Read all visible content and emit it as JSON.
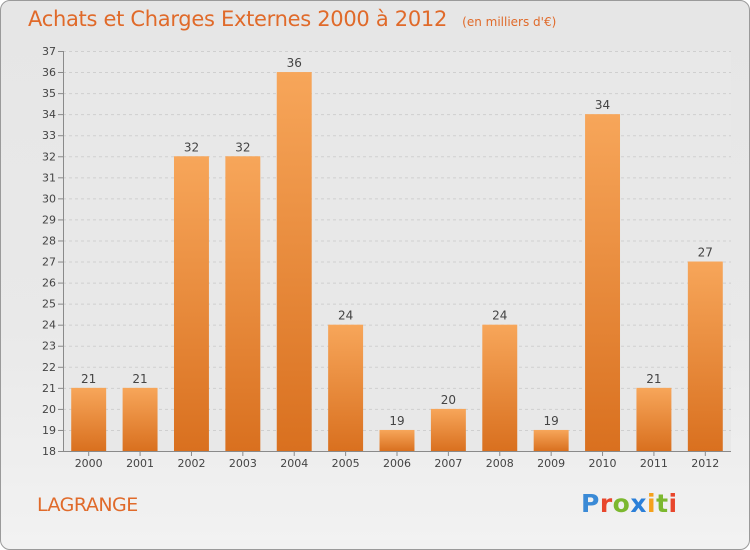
{
  "header": {
    "title": "Achats et Charges Externes 2000 à 2012",
    "unit": "(en milliers d'€)"
  },
  "commune": "LAGRANGE",
  "logo": {
    "text": "Proxiti",
    "letter_colors": [
      "#3a8ad6",
      "#e8462c",
      "#7cb82f",
      "#2b7fd8",
      "#f5a11c",
      "#7cb82f",
      "#e8462c"
    ]
  },
  "colors": {
    "bar_top": "#f7a65a",
    "bar_bottom": "#d9701f",
    "accent": "#e06a2a"
  },
  "chart_data": {
    "type": "bar",
    "categories": [
      "2000",
      "2001",
      "2002",
      "2003",
      "2004",
      "2005",
      "2006",
      "2007",
      "2008",
      "2009",
      "2010",
      "2011",
      "2012"
    ],
    "values": [
      21,
      21,
      32,
      32,
      36,
      24,
      19,
      20,
      24,
      19,
      34,
      21,
      27
    ],
    "ylim": [
      18,
      37
    ],
    "yticks": [
      18,
      19,
      20,
      21,
      22,
      23,
      24,
      25,
      26,
      27,
      28,
      29,
      30,
      31,
      32,
      33,
      34,
      35,
      36,
      37
    ],
    "grid": true,
    "data_labels": true
  }
}
